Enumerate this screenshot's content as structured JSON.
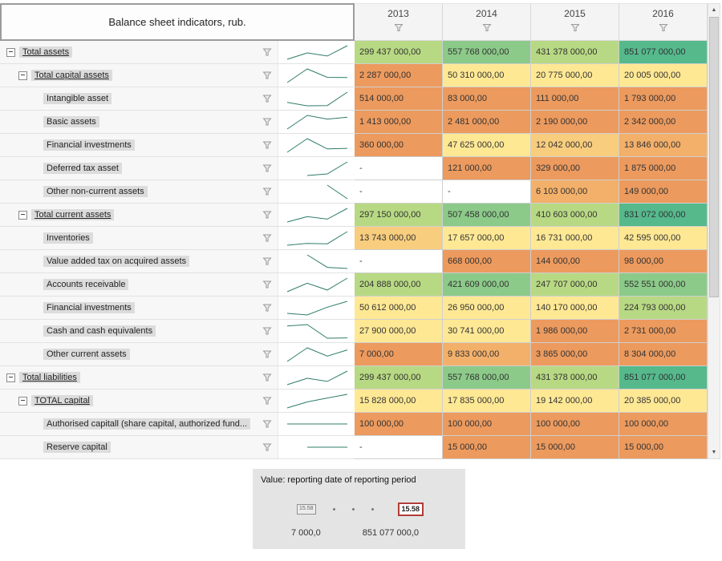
{
  "palette": {
    "green_dark": "#55b98c",
    "green_mid": "#8cca89",
    "green_light": "#b8d983",
    "yellow": "#ffe894",
    "yellow_orange": "#f8cd7d",
    "orange_light": "#f3b06a",
    "orange": "#ec9a5e",
    "white": "#ffffff",
    "spark": "#2f7c6a"
  },
  "header": {
    "title": "Balance sheet indicators, rub.",
    "years": [
      "2013",
      "2014",
      "2015",
      "2016"
    ]
  },
  "rows": [
    {
      "label": "Total assets",
      "level": 0,
      "group": true,
      "values": [
        "299 437 000,00",
        "557 768 000,00",
        "431 378 000,00",
        "851 077 000,00"
      ],
      "colors": [
        "green_light",
        "green_mid",
        "green_light",
        "green_dark"
      ]
    },
    {
      "label": "Total capital assets",
      "level": 1,
      "group": true,
      "values": [
        "2 287 000,00",
        "50 310 000,00",
        "20 775 000,00",
        "20 005 000,00"
      ],
      "colors": [
        "orange",
        "yellow",
        "yellow",
        "yellow"
      ]
    },
    {
      "label": "Intangible asset",
      "level": 2,
      "group": false,
      "values": [
        "514 000,00",
        "83 000,00",
        "111 000,00",
        "1 793 000,00"
      ],
      "colors": [
        "orange",
        "orange",
        "orange",
        "orange"
      ]
    },
    {
      "label": "Basic assets",
      "level": 2,
      "group": false,
      "values": [
        "1 413 000,00",
        "2 481 000,00",
        "2 190 000,00",
        "2 342 000,00"
      ],
      "colors": [
        "orange",
        "orange",
        "orange",
        "orange"
      ]
    },
    {
      "label": "Financial investments",
      "level": 2,
      "group": false,
      "values": [
        "360 000,00",
        "47 625 000,00",
        "12 042 000,00",
        "13 846 000,00"
      ],
      "colors": [
        "orange",
        "yellow",
        "yellow_orange",
        "orange_light"
      ]
    },
    {
      "label": "Deferred tax asset",
      "level": 2,
      "group": false,
      "values": [
        "-",
        "121 000,00",
        "329 000,00",
        "1 875 000,00"
      ],
      "colors": [
        "white",
        "orange",
        "orange",
        "orange"
      ]
    },
    {
      "label": "Other non-current assets",
      "level": 2,
      "group": false,
      "values": [
        "-",
        "-",
        "6 103 000,00",
        "149 000,00"
      ],
      "colors": [
        "white",
        "white",
        "orange_light",
        "orange"
      ]
    },
    {
      "label": "Total current assets",
      "level": 1,
      "group": true,
      "values": [
        "297 150 000,00",
        "507 458 000,00",
        "410 603 000,00",
        "831 072 000,00"
      ],
      "colors": [
        "green_light",
        "green_mid",
        "green_light",
        "green_dark"
      ]
    },
    {
      "label": "Inventories",
      "level": 2,
      "group": false,
      "values": [
        "13 743 000,00",
        "17 657 000,00",
        "16 731 000,00",
        "42 595 000,00"
      ],
      "colors": [
        "yellow_orange",
        "yellow",
        "yellow",
        "yellow"
      ]
    },
    {
      "label": "Value added tax on acquired assets",
      "level": 2,
      "group": false,
      "values": [
        "-",
        "668 000,00",
        "144 000,00",
        "98 000,00"
      ],
      "colors": [
        "white",
        "orange",
        "orange",
        "orange"
      ]
    },
    {
      "label": "Accounts receivable",
      "level": 2,
      "group": false,
      "values": [
        "204 888 000,00",
        "421 609 000,00",
        "247 707 000,00",
        "552 551 000,00"
      ],
      "colors": [
        "green_light",
        "green_mid",
        "green_light",
        "green_mid"
      ]
    },
    {
      "label": "Financial investments",
      "level": 2,
      "group": false,
      "values": [
        "50 612 000,00",
        "26 950 000,00",
        "140 170 000,00",
        "224 793 000,00"
      ],
      "colors": [
        "yellow",
        "yellow",
        "yellow",
        "green_light"
      ]
    },
    {
      "label": "Cash and cash equivalents",
      "level": 2,
      "group": false,
      "values": [
        "27 900 000,00",
        "30 741 000,00",
        "1 986 000,00",
        "2 731 000,00"
      ],
      "colors": [
        "yellow",
        "yellow",
        "orange",
        "orange"
      ]
    },
    {
      "label": "Other current assets",
      "level": 2,
      "group": false,
      "values": [
        "7 000,00",
        "9 833 000,00",
        "3 865 000,00",
        "8 304 000,00"
      ],
      "colors": [
        "orange",
        "orange_light",
        "orange",
        "orange"
      ]
    },
    {
      "label": "Total liabilities",
      "level": 0,
      "group": true,
      "values": [
        "299 437 000,00",
        "557 768 000,00",
        "431 378 000,00",
        "851 077 000,00"
      ],
      "colors": [
        "green_light",
        "green_mid",
        "green_light",
        "green_dark"
      ]
    },
    {
      "label": "TOTAL capital",
      "level": 1,
      "group": true,
      "values": [
        "15 828 000,00",
        "17 835 000,00",
        "19 142 000,00",
        "20 385 000,00"
      ],
      "colors": [
        "yellow",
        "yellow",
        "yellow",
        "yellow"
      ]
    },
    {
      "label": "Authorised capitall (share capital, authorized fund...",
      "level": 2,
      "group": false,
      "values": [
        "100 000,00",
        "100 000,00",
        "100 000,00",
        "100 000,00"
      ],
      "colors": [
        "orange",
        "orange",
        "orange",
        "orange"
      ]
    },
    {
      "label": "Reserve capital",
      "level": 2,
      "group": false,
      "values": [
        "-",
        "15 000,00",
        "15 000,00",
        "15 000,00"
      ],
      "colors": [
        "white",
        "orange",
        "orange",
        "orange"
      ]
    }
  ],
  "legend": {
    "title": "Value: reporting date of reporting period",
    "min_box": "15.58",
    "max_box": "15.58",
    "min_value": "7 000,0",
    "max_value": "851 077 000,0"
  }
}
